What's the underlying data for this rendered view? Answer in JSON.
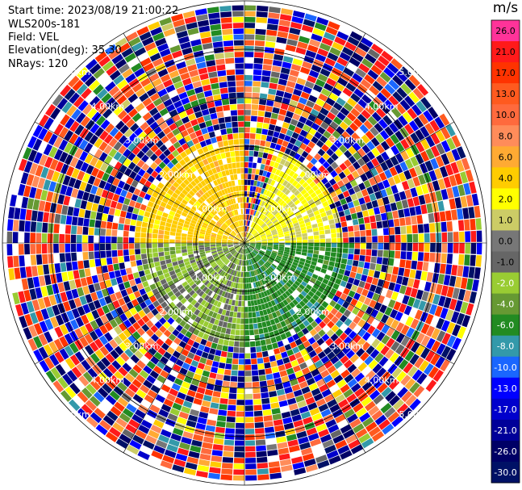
{
  "info": {
    "start_time": "Start time: 2023/08/19 21:00:22",
    "instrument": "WLS200s-181",
    "field": "Field: VEL",
    "elevation": "Elevation(deg): 35.30",
    "nrays": "NRays: 120"
  },
  "colorbar": {
    "unit": "m/s",
    "ticks": [
      "26.0",
      "21.0",
      "17.0",
      "13.0",
      "10.0",
      "8.0",
      "6.0",
      "4.0",
      "2.0",
      "1.0",
      "0.0",
      "-1.0",
      "-2.0",
      "-4.0",
      "-6.0",
      "-8.0",
      "-10.0",
      "-13.0",
      "-17.0",
      "-21.0",
      "-26.0",
      "-30.0"
    ],
    "colors": [
      "#ff3399",
      "#ff1a1a",
      "#ff3300",
      "#ff5a1f",
      "#ff6a3d",
      "#ff8c5a",
      "#ffaa33",
      "#ffcc00",
      "#ffff00",
      "#cccc66",
      "#777777",
      "#666666",
      "#99cc33",
      "#669933",
      "#228b22",
      "#3399aa",
      "#1a66ff",
      "#0000ff",
      "#0000cc",
      "#000099",
      "#000066",
      "#001166"
    ]
  },
  "chart_data": {
    "type": "heatmap",
    "projection": "polar (PPI)",
    "field": "VEL",
    "unit": "m/s",
    "nrays": 120,
    "range_rings_km": [
      1,
      2,
      3,
      4,
      5
    ],
    "ring_labels": [
      "1.00km",
      "2.00km",
      "3.00km",
      "4.00km",
      "5.00km"
    ],
    "vmin": -30.0,
    "vmax": 26.0,
    "sectors_description": [
      {
        "azimuth_range_deg": [
          270,
          360
        ],
        "range_km": [
          0,
          2.2
        ],
        "approx_value_ms": 5.0
      },
      {
        "azimuth_range_deg": [
          20,
          90
        ],
        "range_km": [
          0,
          2.0
        ],
        "approx_value_ms": 2.5
      },
      {
        "azimuth_range_deg": [
          90,
          180
        ],
        "range_km": [
          0,
          2.2
        ],
        "approx_value_ms": -5.0
      },
      {
        "azimuth_range_deg": [
          180,
          270
        ],
        "range_km": [
          0,
          2.2
        ],
        "approx_value_ms": -1.5
      }
    ]
  }
}
